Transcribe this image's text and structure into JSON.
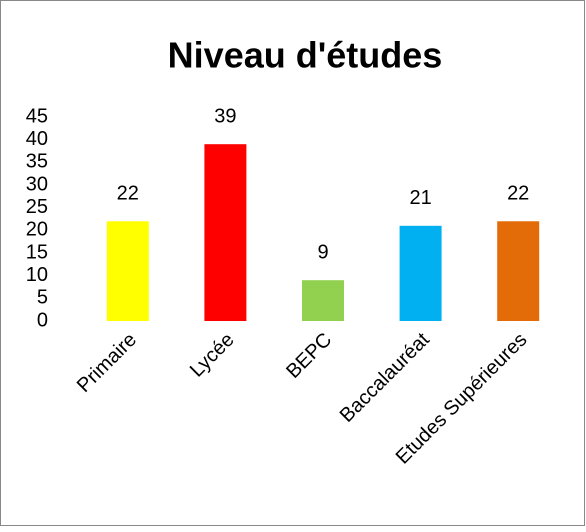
{
  "chart_data": {
    "type": "bar",
    "title": "Niveau d'études",
    "categories": [
      "Primaire",
      "Lycée",
      "BEPC",
      "Baccalauréat",
      "Etudes Supérieures"
    ],
    "values": [
      22,
      39,
      9,
      21,
      22
    ],
    "colors": [
      "#ffff00",
      "#ff0000",
      "#92d050",
      "#00b0f0",
      "#e36c09"
    ],
    "ylim": [
      0,
      45
    ],
    "yticks": [
      0,
      5,
      10,
      15,
      20,
      25,
      30,
      35,
      40,
      45
    ],
    "grid": false
  }
}
